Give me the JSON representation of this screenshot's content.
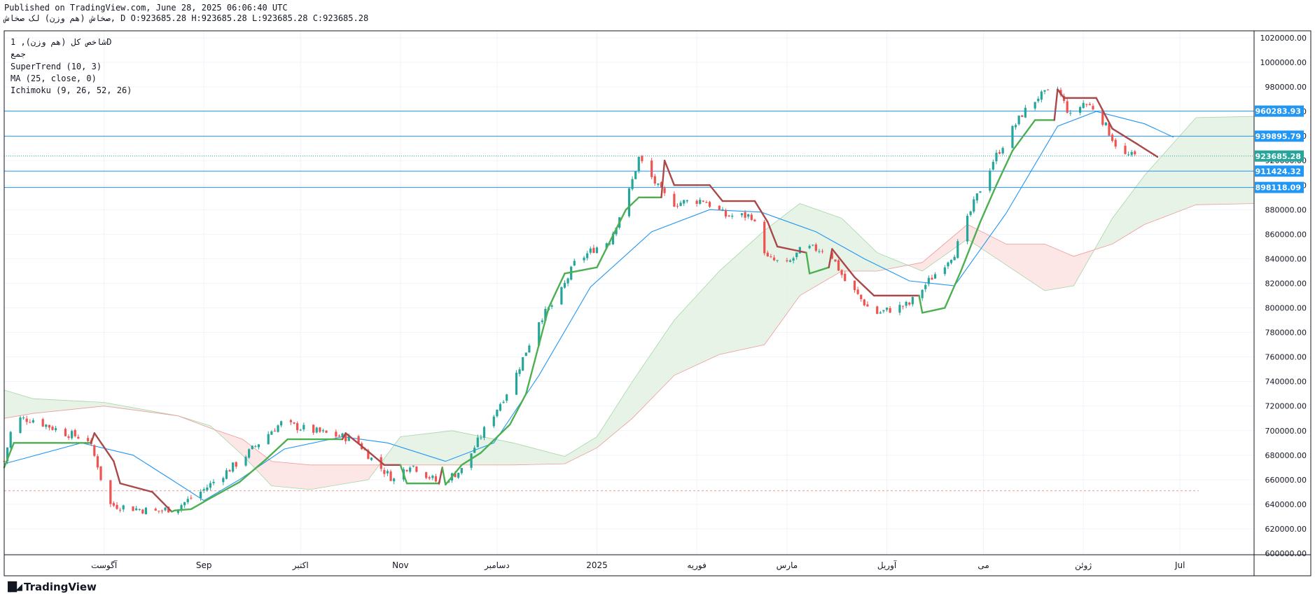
{
  "header": {
    "published": "Published on TradingView.com, June 28, 2025 06:06:40 UTC",
    "ohlc": "صخاش (هم وزن) لک صخاش, D O:923685.28 H:923685.28 L:923685.28 C:923685.28"
  },
  "legend": {
    "symbol": "شاخص کل (هم وزن), 1D",
    "exchange": "جمع",
    "supertrend": "SuperTrend (10, 3)",
    "ma": "MA (25, close, 0)",
    "ichimoku": "Ichimoku (9, 26, 52, 26)"
  },
  "brand": {
    "logo_icon": "tradingview-logo-icon",
    "name": "TradingView"
  },
  "colors": {
    "up": "#26a69a",
    "down": "#ef5350",
    "supertrend_up": "#4caf50",
    "supertrend_down": "#a84848",
    "ma": "#2196f3",
    "hline": "#2196f3",
    "cloud_green": "#e3f2e3",
    "cloud_red": "#fde3e3",
    "last_price": "#26a69a"
  },
  "chart_data": {
    "type": "candlestick",
    "title": "",
    "ylim": [
      600000,
      1020000
    ],
    "grid": true,
    "y_ticks": [
      600000,
      620000,
      640000,
      660000,
      680000,
      700000,
      720000,
      740000,
      760000,
      780000,
      800000,
      820000,
      840000,
      860000,
      880000,
      900000,
      920000,
      940000,
      960000,
      980000,
      1000000,
      1020000
    ],
    "y_tick_labels": [
      "600000.00",
      "620000.00",
      "640000.00",
      "660000.00",
      "680000.00",
      "700000.00",
      "720000.00",
      "740000.00",
      "760000.00",
      "780000.00",
      "800000.00",
      "820000.00",
      "840000.00",
      "860000.00",
      "880000.00",
      "900000.00",
      "920000.00",
      "940000.00",
      "960000.00",
      "980000.00",
      "1000000.00",
      "1020000.00"
    ],
    "x_range": [
      "2024-07-01",
      "2025-07-24"
    ],
    "x_ticks": [
      {
        "date": "2024-08-01",
        "label": "آگوست"
      },
      {
        "date": "2024-09-01",
        "label": "Sep"
      },
      {
        "date": "2024-10-01",
        "label": "اکتبر"
      },
      {
        "date": "2024-11-01",
        "label": "Nov"
      },
      {
        "date": "2024-12-01",
        "label": "دسامبر"
      },
      {
        "date": "2025-01-01",
        "label": "2025"
      },
      {
        "date": "2025-02-01",
        "label": "فوریه"
      },
      {
        "date": "2025-03-01",
        "label": "مارس"
      },
      {
        "date": "2025-04-01",
        "label": "آوریل"
      },
      {
        "date": "2025-05-01",
        "label": "می"
      },
      {
        "date": "2025-06-01",
        "label": "ژوئن"
      },
      {
        "date": "2025-07-01",
        "label": "Jul"
      }
    ],
    "horizontal_levels": [
      {
        "value": 960283.93,
        "label": "960283.93"
      },
      {
        "value": 939895.79,
        "label": "939895.79"
      },
      {
        "value": 911424.32,
        "label": "911424.32"
      },
      {
        "value": 898118.09,
        "label": "898118.09"
      }
    ],
    "last_price": {
      "value": 923685.28,
      "label": "923685.28"
    },
    "reference_level": 651000,
    "price_path": [
      {
        "date": "2024-07-01",
        "close": 675000
      },
      {
        "date": "2024-07-04",
        "close": 710000
      },
      {
        "date": "2024-07-10",
        "close": 709000
      },
      {
        "date": "2024-07-20",
        "close": 698000
      },
      {
        "date": "2024-07-27",
        "close": 693000
      },
      {
        "date": "2024-07-30",
        "close": 672000
      },
      {
        "date": "2024-08-02",
        "close": 640000
      },
      {
        "date": "2024-08-17",
        "close": 634000
      },
      {
        "date": "2024-08-24",
        "close": 638000
      },
      {
        "date": "2024-09-01",
        "close": 652000
      },
      {
        "date": "2024-09-12",
        "close": 675000
      },
      {
        "date": "2024-09-22",
        "close": 700000
      },
      {
        "date": "2024-09-25",
        "close": 706000
      },
      {
        "date": "2024-10-08",
        "close": 698000
      },
      {
        "date": "2024-10-18",
        "close": 693000
      },
      {
        "date": "2024-10-24",
        "close": 674000
      },
      {
        "date": "2024-10-30",
        "close": 660000
      },
      {
        "date": "2024-11-04",
        "close": 673000
      },
      {
        "date": "2024-11-13",
        "close": 657000
      },
      {
        "date": "2024-11-20",
        "close": 668000
      },
      {
        "date": "2024-11-28",
        "close": 705000
      },
      {
        "date": "2024-12-06",
        "close": 740000
      },
      {
        "date": "2024-12-14",
        "close": 790000
      },
      {
        "date": "2024-12-20",
        "close": 808000
      },
      {
        "date": "2024-12-25",
        "close": 836000
      },
      {
        "date": "2024-12-31",
        "close": 848000
      },
      {
        "date": "2025-01-05",
        "close": 855000
      },
      {
        "date": "2025-01-11",
        "close": 895000
      },
      {
        "date": "2025-01-14",
        "close": 922000
      },
      {
        "date": "2025-01-20",
        "close": 898000
      },
      {
        "date": "2025-01-24",
        "close": 885000
      },
      {
        "date": "2025-02-03",
        "close": 888000
      },
      {
        "date": "2025-02-10",
        "close": 875000
      },
      {
        "date": "2025-02-18",
        "close": 875000
      },
      {
        "date": "2025-02-23",
        "close": 840000
      },
      {
        "date": "2025-03-01",
        "close": 835000
      },
      {
        "date": "2025-03-06",
        "close": 849000
      },
      {
        "date": "2025-03-14",
        "close": 847000
      },
      {
        "date": "2025-03-19",
        "close": 822000
      },
      {
        "date": "2025-03-28",
        "close": 795000
      },
      {
        "date": "2025-04-08",
        "close": 803000
      },
      {
        "date": "2025-04-14",
        "close": 822000
      },
      {
        "date": "2025-04-22",
        "close": 845000
      },
      {
        "date": "2025-04-28",
        "close": 885000
      },
      {
        "date": "2025-05-04",
        "close": 920000
      },
      {
        "date": "2025-05-08",
        "close": 937000
      },
      {
        "date": "2025-05-13",
        "close": 958000
      },
      {
        "date": "2025-05-18",
        "close": 972000
      },
      {
        "date": "2025-05-24",
        "close": 978000
      },
      {
        "date": "2025-05-28",
        "close": 956000
      },
      {
        "date": "2025-06-01",
        "close": 967000
      },
      {
        "date": "2025-06-05",
        "close": 962000
      },
      {
        "date": "2025-06-09",
        "close": 943000
      },
      {
        "date": "2025-06-13",
        "close": 924000
      },
      {
        "date": "2025-06-18",
        "close": 923685.28
      }
    ],
    "supertrend": [
      {
        "date": "2024-07-01",
        "value": 670000,
        "dir": "up"
      },
      {
        "date": "2024-07-04",
        "value": 690000,
        "dir": "up"
      },
      {
        "date": "2024-07-28",
        "value": 690000,
        "dir": "up"
      },
      {
        "date": "2024-07-29",
        "value": 698000,
        "dir": "down"
      },
      {
        "date": "2024-08-04",
        "value": 675000,
        "dir": "down"
      },
      {
        "date": "2024-08-06",
        "value": 657000,
        "dir": "down"
      },
      {
        "date": "2024-08-16",
        "value": 650000,
        "dir": "down"
      },
      {
        "date": "2024-08-22",
        "value": 634000,
        "dir": "down"
      },
      {
        "date": "2024-08-23",
        "value": 635000,
        "dir": "up"
      },
      {
        "date": "2024-08-28",
        "value": 636000,
        "dir": "up"
      },
      {
        "date": "2024-09-03",
        "value": 645000,
        "dir": "up"
      },
      {
        "date": "2024-09-12",
        "value": 658000,
        "dir": "up"
      },
      {
        "date": "2024-09-20",
        "value": 676000,
        "dir": "up"
      },
      {
        "date": "2024-09-27",
        "value": 693000,
        "dir": "up"
      },
      {
        "date": "2024-10-14",
        "value": 693000,
        "dir": "up"
      },
      {
        "date": "2024-10-15",
        "value": 698000,
        "dir": "down"
      },
      {
        "date": "2024-10-22",
        "value": 683000,
        "dir": "down"
      },
      {
        "date": "2024-10-27",
        "value": 672000,
        "dir": "down"
      },
      {
        "date": "2024-11-01",
        "value": 672000,
        "dir": "down"
      },
      {
        "date": "2024-11-03",
        "value": 657000,
        "dir": "up"
      },
      {
        "date": "2024-11-13",
        "value": 657000,
        "dir": "up"
      },
      {
        "date": "2024-11-14",
        "value": 670000,
        "dir": "down"
      },
      {
        "date": "2024-11-15",
        "value": 656000,
        "dir": "up"
      },
      {
        "date": "2024-11-20",
        "value": 672000,
        "dir": "up"
      },
      {
        "date": "2024-11-26",
        "value": 682000,
        "dir": "up"
      },
      {
        "date": "2024-12-05",
        "value": 705000,
        "dir": "up"
      },
      {
        "date": "2024-12-10",
        "value": 730000,
        "dir": "up"
      },
      {
        "date": "2024-12-17",
        "value": 800000,
        "dir": "up"
      },
      {
        "date": "2024-12-22",
        "value": 828000,
        "dir": "up"
      },
      {
        "date": "2025-01-01",
        "value": 833000,
        "dir": "up"
      },
      {
        "date": "2025-01-10",
        "value": 880000,
        "dir": "up"
      },
      {
        "date": "2025-01-14",
        "value": 890000,
        "dir": "up"
      },
      {
        "date": "2025-01-21",
        "value": 890000,
        "dir": "up"
      },
      {
        "date": "2025-01-22",
        "value": 920000,
        "dir": "down"
      },
      {
        "date": "2025-01-25",
        "value": 900000,
        "dir": "down"
      },
      {
        "date": "2025-02-05",
        "value": 900000,
        "dir": "down"
      },
      {
        "date": "2025-02-09",
        "value": 887000,
        "dir": "down"
      },
      {
        "date": "2025-02-19",
        "value": 887000,
        "dir": "down"
      },
      {
        "date": "2025-02-23",
        "value": 870000,
        "dir": "down"
      },
      {
        "date": "2025-02-26",
        "value": 850000,
        "dir": "down"
      },
      {
        "date": "2025-03-07",
        "value": 845000,
        "dir": "down"
      },
      {
        "date": "2025-03-08",
        "value": 828000,
        "dir": "up"
      },
      {
        "date": "2025-03-14",
        "value": 833000,
        "dir": "up"
      },
      {
        "date": "2025-03-15",
        "value": 848000,
        "dir": "down"
      },
      {
        "date": "2025-03-22",
        "value": 825000,
        "dir": "down"
      },
      {
        "date": "2025-03-28",
        "value": 810000,
        "dir": "down"
      },
      {
        "date": "2025-04-11",
        "value": 810000,
        "dir": "down"
      },
      {
        "date": "2025-04-12",
        "value": 796000,
        "dir": "up"
      },
      {
        "date": "2025-04-19",
        "value": 800000,
        "dir": "up"
      },
      {
        "date": "2025-04-24",
        "value": 830000,
        "dir": "up"
      },
      {
        "date": "2025-04-30",
        "value": 870000,
        "dir": "up"
      },
      {
        "date": "2025-05-05",
        "value": 900000,
        "dir": "up"
      },
      {
        "date": "2025-05-10",
        "value": 928000,
        "dir": "up"
      },
      {
        "date": "2025-05-17",
        "value": 953000,
        "dir": "up"
      },
      {
        "date": "2025-05-23",
        "value": 953000,
        "dir": "up"
      },
      {
        "date": "2025-05-24",
        "value": 978000,
        "dir": "down"
      },
      {
        "date": "2025-05-26",
        "value": 971000,
        "dir": "down"
      },
      {
        "date": "2025-06-05",
        "value": 971000,
        "dir": "down"
      },
      {
        "date": "2025-06-10",
        "value": 946000,
        "dir": "down"
      },
      {
        "date": "2025-06-18",
        "value": 933000,
        "dir": "down"
      },
      {
        "date": "2025-06-24",
        "value": 923000,
        "dir": "down"
      }
    ],
    "moving_average": [
      {
        "date": "2024-07-01",
        "value": 673000
      },
      {
        "date": "2024-07-25",
        "value": 690000
      },
      {
        "date": "2024-08-10",
        "value": 680000
      },
      {
        "date": "2024-08-22",
        "value": 660000
      },
      {
        "date": "2024-09-01",
        "value": 643000
      },
      {
        "date": "2024-09-12",
        "value": 660000
      },
      {
        "date": "2024-09-26",
        "value": 685000
      },
      {
        "date": "2024-10-14",
        "value": 695000
      },
      {
        "date": "2024-10-28",
        "value": 690000
      },
      {
        "date": "2024-11-15",
        "value": 675000
      },
      {
        "date": "2024-11-30",
        "value": 690000
      },
      {
        "date": "2024-12-14",
        "value": 745000
      },
      {
        "date": "2024-12-30",
        "value": 817000
      },
      {
        "date": "2025-01-18",
        "value": 862000
      },
      {
        "date": "2025-02-05",
        "value": 880000
      },
      {
        "date": "2025-02-21",
        "value": 878000
      },
      {
        "date": "2025-03-10",
        "value": 862000
      },
      {
        "date": "2025-03-25",
        "value": 840000
      },
      {
        "date": "2025-04-08",
        "value": 822000
      },
      {
        "date": "2025-04-22",
        "value": 818000
      },
      {
        "date": "2025-05-08",
        "value": 877000
      },
      {
        "date": "2025-05-24",
        "value": 948000
      },
      {
        "date": "2025-06-05",
        "value": 960000
      },
      {
        "date": "2025-06-20",
        "value": 950000
      },
      {
        "date": "2025-06-29",
        "value": 939000
      }
    ],
    "ichimoku_cloud": [
      {
        "date": "2024-07-01",
        "a": 733000,
        "b": 710000
      },
      {
        "date": "2024-07-10",
        "a": 726000,
        "b": 714000
      },
      {
        "date": "2024-08-01",
        "a": 723000,
        "b": 720000
      },
      {
        "date": "2024-08-24",
        "a": 712000,
        "b": 712000
      },
      {
        "date": "2024-09-03",
        "a": 704000,
        "b": 702000
      },
      {
        "date": "2024-09-13",
        "a": 680000,
        "b": 693000
      },
      {
        "date": "2024-09-22",
        "a": 655000,
        "b": 675000
      },
      {
        "date": "2024-10-04",
        "a": 652000,
        "b": 672000
      },
      {
        "date": "2024-10-22",
        "a": 660000,
        "b": 672000
      },
      {
        "date": "2024-11-01",
        "a": 695000,
        "b": 672000
      },
      {
        "date": "2024-11-17",
        "a": 700000,
        "b": 672000
      },
      {
        "date": "2024-12-06",
        "a": 690000,
        "b": 672000
      },
      {
        "date": "2024-12-22",
        "a": 679000,
        "b": 673000
      },
      {
        "date": "2025-01-01",
        "a": 695000,
        "b": 686000
      },
      {
        "date": "2025-01-12",
        "a": 740000,
        "b": 710000
      },
      {
        "date": "2025-01-25",
        "a": 790000,
        "b": 745000
      },
      {
        "date": "2025-02-08",
        "a": 830000,
        "b": 762000
      },
      {
        "date": "2025-02-22",
        "a": 863000,
        "b": 770000
      },
      {
        "date": "2025-03-05",
        "a": 885000,
        "b": 810000
      },
      {
        "date": "2025-03-18",
        "a": 873000,
        "b": 830000
      },
      {
        "date": "2025-03-29",
        "a": 845000,
        "b": 830000
      },
      {
        "date": "2025-04-12",
        "a": 830000,
        "b": 837000
      },
      {
        "date": "2025-04-26",
        "a": 856000,
        "b": 868000
      },
      {
        "date": "2025-05-08",
        "a": 835000,
        "b": 852000
      },
      {
        "date": "2025-05-20",
        "a": 814000,
        "b": 852000
      },
      {
        "date": "2025-05-29",
        "a": 818000,
        "b": 842000
      },
      {
        "date": "2025-06-10",
        "a": 873000,
        "b": 852000
      },
      {
        "date": "2025-06-20",
        "a": 908000,
        "b": 868000
      },
      {
        "date": "2025-07-06",
        "a": 955000,
        "b": 884000
      },
      {
        "date": "2025-07-24",
        "a": 956000,
        "b": 885000
      }
    ]
  }
}
